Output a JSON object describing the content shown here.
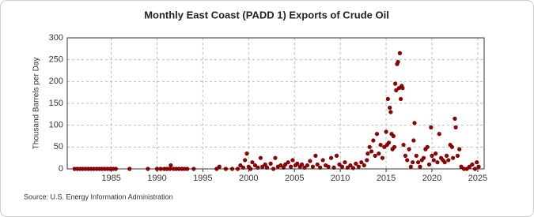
{
  "chart_data": {
    "type": "scatter",
    "title": "Monthly East Coast (PADD 1) Exports of Crude Oil",
    "y_label": "Thousand Barrels per Day",
    "source": "Source: U.S. Energy Information Administration",
    "color": "#990000",
    "grid": true,
    "xlim": [
      1980.2,
      2025.7
    ],
    "xticks": [
      1985,
      1990,
      1995,
      2000,
      2005,
      2010,
      2015,
      2020,
      2025
    ],
    "ylim": [
      0,
      300
    ],
    "yticks": [
      0,
      50,
      100,
      150,
      200,
      250,
      300
    ],
    "x": [
      1981.0,
      1981.3,
      1981.6,
      1981.9,
      1982.2,
      1982.5,
      1982.8,
      1983.1,
      1983.4,
      1983.7,
      1984.0,
      1984.3,
      1984.6,
      1984.9,
      1985.2,
      1985.5,
      1987.0,
      1989.0,
      1990.0,
      1990.4,
      1990.8,
      1991.1,
      1991.4,
      1991.5,
      1991.8,
      1992.1,
      1992.4,
      1992.7,
      1993.0,
      1993.3,
      1994.0,
      1996.5,
      1996.8,
      1997.5,
      1998.2,
      1998.8,
      1999.1,
      1999.4,
      1999.6,
      1999.8,
      2000.0,
      2000.2,
      2000.4,
      2000.7,
      2001.0,
      2001.3,
      2001.5,
      2001.8,
      2002.0,
      2002.4,
      2002.7,
      2002.9,
      2003.2,
      2003.5,
      2003.8,
      2004.0,
      2004.3,
      2004.6,
      2004.8,
      2005.1,
      2005.3,
      2005.6,
      2005.8,
      2006.1,
      2006.4,
      2006.7,
      2007.0,
      2007.3,
      2007.5,
      2007.8,
      2008.1,
      2008.4,
      2008.7,
      2009.0,
      2009.3,
      2009.6,
      2009.9,
      2010.2,
      2010.5,
      2010.8,
      2011.1,
      2011.4,
      2011.7,
      2012.0,
      2012.3,
      2012.6,
      2012.9,
      2013.0,
      2013.2,
      2013.4,
      2013.6,
      2013.8,
      2014.0,
      2014.2,
      2014.4,
      2014.6,
      2014.8,
      2015.0,
      2015.1,
      2015.2,
      2015.3,
      2015.4,
      2015.5,
      2015.6,
      2015.7,
      2015.8,
      2015.9,
      2016.0,
      2016.1,
      2016.2,
      2016.3,
      2016.4,
      2016.5,
      2016.6,
      2016.7,
      2016.8,
      2016.9,
      2017.1,
      2017.3,
      2017.5,
      2017.7,
      2017.9,
      2018.0,
      2018.1,
      2018.3,
      2018.5,
      2018.7,
      2018.9,
      2019.1,
      2019.3,
      2019.5,
      2019.7,
      2019.9,
      2020.0,
      2020.2,
      2020.4,
      2020.6,
      2020.8,
      2021.0,
      2021.2,
      2021.4,
      2021.6,
      2021.8,
      2022.0,
      2022.2,
      2022.3,
      2022.5,
      2022.6,
      2022.8,
      2023.0,
      2023.2,
      2023.5,
      2023.8,
      2024.1,
      2024.4,
      2024.7,
      2024.9,
      2025.1
    ],
    "values": [
      0,
      0,
      0,
      0,
      0,
      0,
      0,
      0,
      0,
      0,
      0,
      0,
      0,
      0,
      0,
      0,
      0,
      0,
      0,
      0,
      0,
      0,
      0,
      8,
      0,
      0,
      0,
      0,
      0,
      0,
      0,
      0,
      5,
      0,
      0,
      0,
      8,
      3,
      20,
      35,
      5,
      0,
      15,
      8,
      3,
      25,
      5,
      10,
      3,
      12,
      0,
      25,
      5,
      8,
      3,
      10,
      15,
      5,
      20,
      8,
      12,
      5,
      10,
      3,
      8,
      18,
      5,
      30,
      10,
      3,
      20,
      8,
      5,
      25,
      3,
      30,
      10,
      5,
      15,
      3,
      8,
      2,
      12,
      5,
      15,
      8,
      20,
      35,
      50,
      40,
      65,
      30,
      80,
      35,
      55,
      25,
      50,
      85,
      55,
      160,
      60,
      140,
      130,
      80,
      45,
      75,
      50,
      195,
      180,
      240,
      245,
      185,
      265,
      160,
      190,
      185,
      55,
      30,
      20,
      45,
      5,
      15,
      65,
      105,
      30,
      15,
      5,
      20,
      25,
      45,
      50,
      10,
      95,
      30,
      20,
      35,
      15,
      80,
      25,
      20,
      15,
      30,
      20,
      55,
      50,
      25,
      115,
      95,
      30,
      45,
      5,
      0,
      0,
      5,
      10,
      0,
      15,
      5
    ]
  }
}
